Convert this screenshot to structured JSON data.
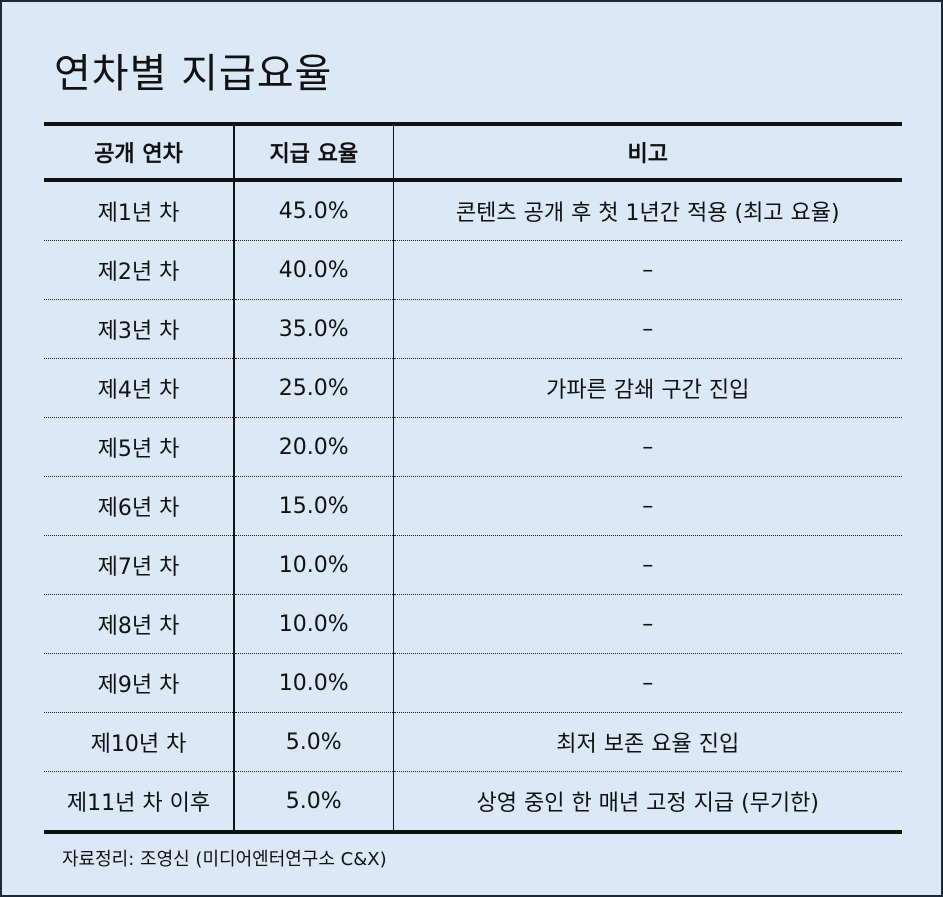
{
  "title": "연차별 지급요율",
  "headers": [
    "공개 연차",
    "지급 요율",
    "비고"
  ],
  "rows": [
    [
      "제1년 차",
      "45.0%",
      "콘텐츠 공개 후 첫 1년간 적용 (최고 요율)"
    ],
    [
      "제2년 차",
      "40.0%",
      "–"
    ],
    [
      "제3년 차",
      "35.0%",
      "–"
    ],
    [
      "제4년 차",
      "25.0%",
      "가파른 감쇄 구간 진입"
    ],
    [
      "제5년 차",
      "20.0%",
      "–"
    ],
    [
      "제6년 차",
      "15.0%",
      "–"
    ],
    [
      "제7년 차",
      "10.0%",
      "–"
    ],
    [
      "제8년 차",
      "10.0%",
      "–"
    ],
    [
      "제9년 차",
      "10.0%",
      "–"
    ],
    [
      "제10년 차",
      "5.0%",
      "최저 보존 요율 진입"
    ],
    [
      "제11년 차 이후",
      "5.0%",
      "상영 중인 한 매년 고정 지급 (무기한)"
    ]
  ],
  "source": "자료정리: 조영신 (미디어엔터연구소 C&X)"
}
